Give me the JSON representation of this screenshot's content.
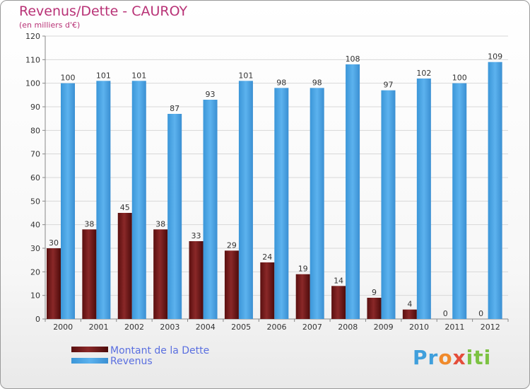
{
  "title": "Revenus/Dette - CAUROY",
  "subtitle": "(en milliers d'€)",
  "logo": "Proxiti",
  "colors": {
    "debt": "#7a1d1d",
    "revenue": "#4ea6e6",
    "title": "#b83276",
    "legend_text": "#5a6fe0"
  },
  "chart_data": {
    "type": "bar",
    "categories": [
      "2000",
      "2001",
      "2002",
      "2003",
      "2004",
      "2005",
      "2006",
      "2007",
      "2008",
      "2009",
      "2010",
      "2011",
      "2012"
    ],
    "series": [
      {
        "name": "Montant de la Dette",
        "values": [
          30,
          38,
          45,
          38,
          33,
          29,
          24,
          19,
          14,
          9,
          4,
          0,
          0
        ]
      },
      {
        "name": "Revenus",
        "values": [
          100,
          101,
          101,
          87,
          93,
          101,
          98,
          98,
          108,
          97,
          102,
          100,
          109
        ]
      }
    ],
    "ylim": [
      0,
      120
    ],
    "yticks": [
      0,
      10,
      20,
      30,
      40,
      50,
      60,
      70,
      80,
      90,
      100,
      110,
      120
    ],
    "grid": true,
    "legend_position": "bottom-left"
  }
}
